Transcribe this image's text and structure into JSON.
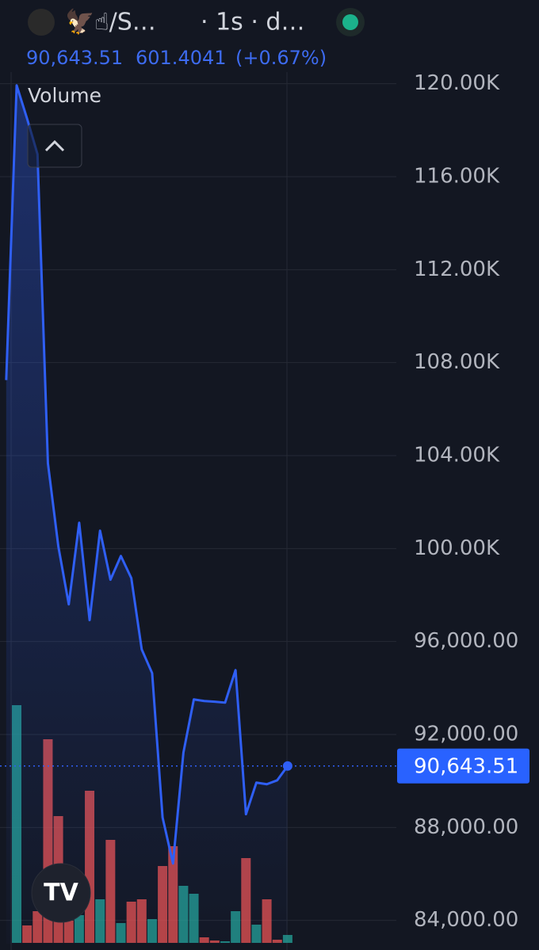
{
  "header": {
    "symbol": "🦅☝/S…",
    "interval": "· 1s · d…",
    "price": "90,643.51",
    "change": "601.4041",
    "change_pct": "(+0.67%)"
  },
  "chart_data": {
    "type": "line",
    "volume_title": "Volume",
    "categories": [
      null,
      null,
      null,
      null,
      null,
      null,
      null,
      null,
      null,
      null,
      null,
      null,
      null,
      null,
      null,
      null,
      null,
      null,
      null,
      null,
      null,
      null,
      null,
      null,
      null,
      null,
      null,
      null
    ],
    "series": [
      {
        "color": "#2f5ff5",
        "values": [
          107250,
          119930,
          118500,
          116970,
          103670,
          100090,
          97600,
          101110,
          96920,
          100770,
          98660,
          99680,
          98730,
          95660,
          94640,
          88430,
          86450,
          91220,
          93510,
          93440,
          93410,
          93370,
          94770,
          88570,
          89930,
          89860,
          90030,
          90643.51
        ]
      }
    ],
    "volume": {
      "values": [
        null,
        300,
        22,
        40,
        257,
        160,
        28,
        35,
        192,
        55,
        130,
        25,
        52,
        55,
        30,
        97,
        122,
        72,
        62,
        7,
        3,
        2,
        40,
        107,
        23,
        55,
        4,
        10
      ],
      "colors": [
        "#26a69a",
        "#26a69a",
        "#ef5350",
        "#ef5350",
        "#ef5350",
        "#ef5350",
        "#ef5350",
        "#26a69a",
        "#ef5350",
        "#26a69a",
        "#ef5350",
        "#26a69a",
        "#ef5350",
        "#ef5350",
        "#26a69a",
        "#ef5350",
        "#ef5350",
        "#26a69a",
        "#26a69a",
        "#ef5350",
        "#ef5350",
        "#26a69a",
        "#26a69a",
        "#ef5350",
        "#26a69a",
        "#ef5350",
        "#ef5350",
        "#26a69a"
      ]
    },
    "ylim": [
      83000,
      120500
    ],
    "yticks": [
      {
        "value": 120000,
        "label": "120.00K"
      },
      {
        "value": 116000,
        "label": "116.00K"
      },
      {
        "value": 112000,
        "label": "112.00K"
      },
      {
        "value": 108000,
        "label": "108.00K"
      },
      {
        "value": 104000,
        "label": "104.00K"
      },
      {
        "value": 100000,
        "label": "100.00K"
      },
      {
        "value": 96000,
        "label": "96,000.00"
      },
      {
        "value": 92000,
        "label": "92,000.00"
      },
      {
        "value": 88000,
        "label": "88,000.00"
      },
      {
        "value": 84000,
        "label": "84,000.00"
      }
    ],
    "price_label": {
      "value": 90643.51,
      "label": "90,643.51"
    },
    "grid": true
  }
}
